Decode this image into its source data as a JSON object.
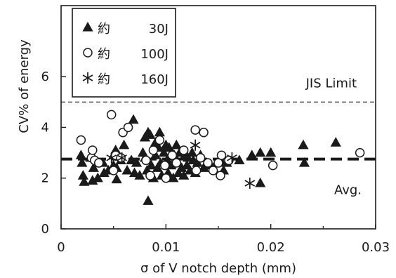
{
  "chart_data": {
    "type": "scatter",
    "title": "",
    "xlabel": "σ of V notch depth (mm)",
    "ylabel": "CV% of energy",
    "xlim": [
      0,
      0.03
    ],
    "ylim": [
      0,
      8.8
    ],
    "x_ticks": [
      0,
      0.01,
      0.02,
      0.03
    ],
    "x_tick_labels": [
      "0",
      "0.01",
      "0.02",
      "0.03"
    ],
    "y_ticks": [
      0,
      2,
      4,
      6
    ],
    "y_tick_labels": [
      "0",
      "2",
      "4",
      "6"
    ],
    "grid": false,
    "legend_position": "top-left",
    "reference_lines": [
      {
        "label": "JIS Limit",
        "y": 5.0,
        "style": "dashed-thin"
      },
      {
        "label": "Avg.",
        "y": 2.75,
        "style": "dashed-thick"
      }
    ],
    "series": [
      {
        "name": "約 30J",
        "marker": "triangle",
        "points": [
          [
            0.0019,
            2.9
          ],
          [
            0.002,
            2.6
          ],
          [
            0.0021,
            2.1
          ],
          [
            0.0022,
            1.85
          ],
          [
            0.0028,
            2.8
          ],
          [
            0.003,
            1.9
          ],
          [
            0.0031,
            2.4
          ],
          [
            0.0035,
            2.0
          ],
          [
            0.004,
            2.6
          ],
          [
            0.0041,
            2.2
          ],
          [
            0.0045,
            2.3
          ],
          [
            0.005,
            2.5
          ],
          [
            0.005,
            2.9
          ],
          [
            0.0052,
            3.1
          ],
          [
            0.0053,
            2.4
          ],
          [
            0.0053,
            1.95
          ],
          [
            0.0055,
            2.9
          ],
          [
            0.0057,
            2.7
          ],
          [
            0.006,
            3.3
          ],
          [
            0.0063,
            2.3
          ],
          [
            0.0067,
            2.7
          ],
          [
            0.0069,
            4.3
          ],
          [
            0.007,
            2.2
          ],
          [
            0.0072,
            2.6
          ],
          [
            0.0075,
            2.1
          ],
          [
            0.0078,
            3.0
          ],
          [
            0.008,
            3.6
          ],
          [
            0.008,
            2.8
          ],
          [
            0.0082,
            2.3
          ],
          [
            0.0083,
            3.8
          ],
          [
            0.0083,
            1.1
          ],
          [
            0.0085,
            3.7
          ],
          [
            0.0086,
            2.5
          ],
          [
            0.0088,
            2.0
          ],
          [
            0.009,
            3.4
          ],
          [
            0.009,
            2.9
          ],
          [
            0.0092,
            2.4
          ],
          [
            0.0093,
            3.2
          ],
          [
            0.0094,
            3.8
          ],
          [
            0.0095,
            2.6
          ],
          [
            0.0096,
            2.1
          ],
          [
            0.0098,
            3.0
          ],
          [
            0.01,
            3.3
          ],
          [
            0.0101,
            2.7
          ],
          [
            0.0102,
            2.2
          ],
          [
            0.0103,
            3.2
          ],
          [
            0.0105,
            2.5
          ],
          [
            0.0106,
            3.0
          ],
          [
            0.0107,
            2.0
          ],
          [
            0.0108,
            2.9
          ],
          [
            0.011,
            3.3
          ],
          [
            0.0111,
            2.6
          ],
          [
            0.0112,
            2.2
          ],
          [
            0.0113,
            3.0
          ],
          [
            0.0115,
            2.4
          ],
          [
            0.0117,
            2.1
          ],
          [
            0.0118,
            2.9
          ],
          [
            0.012,
            2.5
          ],
          [
            0.0121,
            2.8
          ],
          [
            0.0123,
            2.3
          ],
          [
            0.0125,
            3.0
          ],
          [
            0.0126,
            2.7
          ],
          [
            0.0128,
            2.2
          ],
          [
            0.013,
            2.6
          ],
          [
            0.0133,
            2.9
          ],
          [
            0.0136,
            2.4
          ],
          [
            0.014,
            2.5
          ],
          [
            0.0145,
            2.4
          ],
          [
            0.0152,
            2.7
          ],
          [
            0.0155,
            2.3
          ],
          [
            0.0158,
            2.6
          ],
          [
            0.017,
            2.7
          ],
          [
            0.0182,
            2.9
          ],
          [
            0.019,
            3.0
          ],
          [
            0.019,
            1.8
          ],
          [
            0.02,
            3.0
          ],
          [
            0.0231,
            3.3
          ],
          [
            0.0232,
            2.6
          ],
          [
            0.0262,
            3.4
          ]
        ]
      },
      {
        "name": "約 100J",
        "marker": "circle",
        "points": [
          [
            0.0019,
            3.5
          ],
          [
            0.0029,
            2.8
          ],
          [
            0.003,
            3.1
          ],
          [
            0.0032,
            2.7
          ],
          [
            0.0036,
            2.6
          ],
          [
            0.0048,
            4.5
          ],
          [
            0.005,
            2.3
          ],
          [
            0.0052,
            2.9
          ],
          [
            0.0057,
            2.8
          ],
          [
            0.0059,
            3.8
          ],
          [
            0.0064,
            4.0
          ],
          [
            0.0081,
            2.7
          ],
          [
            0.0085,
            2.1
          ],
          [
            0.0088,
            3.1
          ],
          [
            0.0094,
            3.5
          ],
          [
            0.0099,
            2.5
          ],
          [
            0.01,
            2.0
          ],
          [
            0.0106,
            2.9
          ],
          [
            0.011,
            2.6
          ],
          [
            0.0117,
            3.1
          ],
          [
            0.0128,
            3.9
          ],
          [
            0.0129,
            2.3
          ],
          [
            0.0133,
            2.8
          ],
          [
            0.0136,
            3.8
          ],
          [
            0.014,
            2.6
          ],
          [
            0.0145,
            2.3
          ],
          [
            0.015,
            2.6
          ],
          [
            0.0152,
            2.1
          ],
          [
            0.0153,
            2.9
          ],
          [
            0.016,
            2.7
          ],
          [
            0.0202,
            2.5
          ],
          [
            0.0285,
            3.0
          ]
        ]
      },
      {
        "name": "約 160J",
        "marker": "asterisk",
        "points": [
          [
            0.0048,
            2.8
          ],
          [
            0.0058,
            2.8
          ],
          [
            0.0128,
            3.3
          ],
          [
            0.0163,
            2.8
          ],
          [
            0.018,
            1.8
          ]
        ]
      }
    ]
  }
}
